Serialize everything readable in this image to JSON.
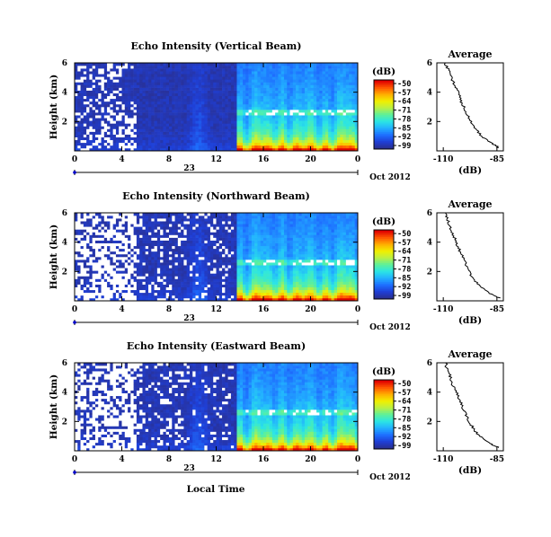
{
  "figure": {
    "xlabel": "Local Time",
    "date_label": "Oct 2012",
    "day_label": "23",
    "colorbar_unit": "(dB)",
    "colorbar_ticks": [
      "-50",
      "-57",
      "-64",
      "-71",
      "-78",
      "-85",
      "-92",
      "-99"
    ],
    "colorscale": [
      "#2a2f8f",
      "#1f3fd6",
      "#1e6fff",
      "#22b0ff",
      "#2be5e5",
      "#5cf09a",
      "#b9f046",
      "#f0f000",
      "#ffb000",
      "#ff5a00",
      "#e00000"
    ]
  },
  "chart_data": [
    {
      "type": "heatmap",
      "title": "Echo Intensity (Vertical Beam)",
      "ylabel": "Height (km)",
      "xticks": [
        "0",
        "4",
        "8",
        "12",
        "16",
        "20",
        "0"
      ],
      "yticks": [
        "6",
        "4",
        "2"
      ],
      "xlim_hours": [
        0,
        24
      ],
      "ylim_km": [
        0,
        6
      ],
      "zlim_db": [
        -99,
        -50
      ],
      "profile": {
        "title": "Average",
        "xlabel": "(dB)",
        "xticks": [
          "-110",
          "-85"
        ],
        "yticks": [
          "6",
          "4",
          "2"
        ],
        "xlim_db": [
          -113,
          -82
        ],
        "ylim_km": [
          0,
          6
        ],
        "points": [
          [
            0.2,
            -84
          ],
          [
            0.5,
            -87
          ],
          [
            1.0,
            -92
          ],
          [
            1.5,
            -95
          ],
          [
            2.0,
            -97
          ],
          [
            2.5,
            -99
          ],
          [
            3.0,
            -100.5
          ],
          [
            3.5,
            -102
          ],
          [
            4.0,
            -103
          ],
          [
            4.5,
            -105
          ],
          [
            5.0,
            -106
          ],
          [
            5.5,
            -107.5
          ],
          [
            6.0,
            -109
          ]
        ]
      }
    },
    {
      "type": "heatmap",
      "title": "Echo Intensity (Northward Beam)",
      "ylabel": "Height (km)",
      "xticks": [
        "0",
        "4",
        "8",
        "12",
        "16",
        "20",
        "0"
      ],
      "yticks": [
        "6",
        "4",
        "2"
      ],
      "xlim_hours": [
        0,
        24
      ],
      "ylim_km": [
        0,
        6
      ],
      "zlim_db": [
        -99,
        -50
      ],
      "profile": {
        "title": "Average",
        "xlabel": "(dB)",
        "xticks": [
          "-110",
          "-85"
        ],
        "yticks": [
          "6",
          "4",
          "2"
        ],
        "xlim_db": [
          -113,
          -82
        ],
        "ylim_km": [
          0,
          6
        ],
        "points": [
          [
            0.2,
            -84
          ],
          [
            0.5,
            -88
          ],
          [
            1.0,
            -93
          ],
          [
            1.5,
            -96
          ],
          [
            2.0,
            -98
          ],
          [
            2.5,
            -99.5
          ],
          [
            3.0,
            -101
          ],
          [
            3.5,
            -102.5
          ],
          [
            4.0,
            -104
          ],
          [
            4.5,
            -105.5
          ],
          [
            5.0,
            -106.5
          ],
          [
            5.5,
            -108
          ],
          [
            6.0,
            -109
          ]
        ]
      }
    },
    {
      "type": "heatmap",
      "title": "Echo Intensity (Eastward Beam)",
      "ylabel": "Height (km)",
      "xticks": [
        "0",
        "4",
        "8",
        "12",
        "16",
        "20",
        "0"
      ],
      "yticks": [
        "6",
        "4",
        "2"
      ],
      "xlim_hours": [
        0,
        24
      ],
      "ylim_km": [
        0,
        6
      ],
      "zlim_db": [
        -99,
        -50
      ],
      "profile": {
        "title": "Average",
        "xlabel": "(dB)",
        "xticks": [
          "-110",
          "-85"
        ],
        "yticks": [
          "6",
          "4",
          "2"
        ],
        "xlim_db": [
          -113,
          -82
        ],
        "ylim_km": [
          0,
          6
        ],
        "points": [
          [
            0.2,
            -84
          ],
          [
            0.5,
            -88
          ],
          [
            1.0,
            -93
          ],
          [
            1.5,
            -96
          ],
          [
            2.0,
            -98
          ],
          [
            2.5,
            -99.5
          ],
          [
            3.0,
            -101
          ],
          [
            3.5,
            -102.5
          ],
          [
            4.0,
            -104
          ],
          [
            4.5,
            -105.5
          ],
          [
            5.0,
            -106.5
          ],
          [
            5.5,
            -108
          ],
          [
            6.0,
            -109
          ]
        ]
      }
    }
  ]
}
